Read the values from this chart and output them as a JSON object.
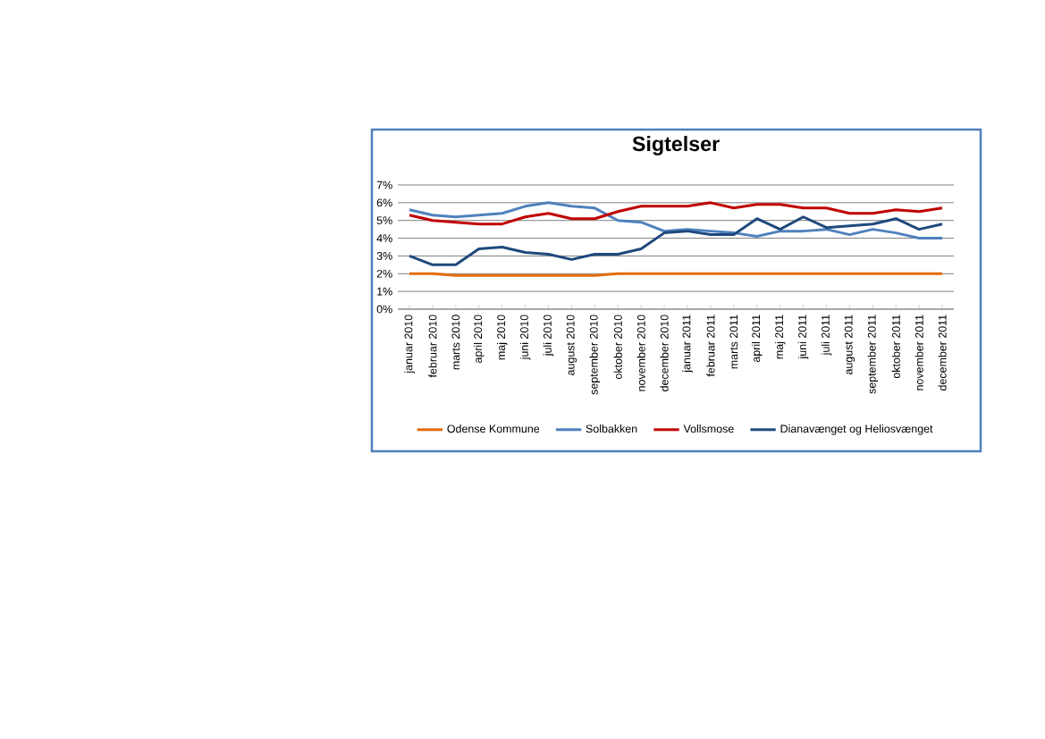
{
  "chart_data": {
    "type": "line",
    "title": "Sigtelser",
    "categories": [
      "januar 2010",
      "februar 2010",
      "marts 2010",
      "april 2010",
      "maj 2010",
      "juni 2010",
      "juli 2010",
      "august 2010",
      "september 2010",
      "oktober 2010",
      "november 2010",
      "december 2010",
      "januar 2011",
      "februar 2011",
      "marts 2011",
      "april 2011",
      "maj 2011",
      "juni 2011",
      "juli 2011",
      "august 2011",
      "september 2011",
      "oktober 2011",
      "november 2011",
      "december 2011"
    ],
    "series": [
      {
        "name": "Odense Kommune",
        "color": "#e46c0a",
        "values": [
          2.0,
          2.0,
          1.9,
          1.9,
          1.9,
          1.9,
          1.9,
          1.9,
          1.9,
          2.0,
          2.0,
          2.0,
          2.0,
          2.0,
          2.0,
          2.0,
          2.0,
          2.0,
          2.0,
          2.0,
          2.0,
          2.0,
          2.0,
          2.0
        ]
      },
      {
        "name": "Solbakken",
        "color": "#4f81bd",
        "values": [
          5.6,
          5.3,
          5.2,
          5.3,
          5.4,
          5.8,
          6.0,
          5.8,
          5.7,
          5.0,
          4.9,
          4.4,
          4.5,
          4.4,
          4.3,
          4.1,
          4.4,
          4.4,
          4.5,
          4.2,
          4.5,
          4.3,
          4.0,
          4.0
        ]
      },
      {
        "name": "Vollsmose",
        "color": "#c00000",
        "values": [
          5.3,
          5.0,
          4.9,
          4.8,
          4.8,
          5.2,
          5.4,
          5.1,
          5.1,
          5.5,
          5.8,
          5.8,
          5.8,
          6.0,
          5.7,
          5.9,
          5.9,
          5.7,
          5.7,
          5.4,
          5.4,
          5.6,
          5.5,
          5.7
        ]
      },
      {
        "name": "Dianavænget og Heliosvænget",
        "color": "#1f497d",
        "values": [
          3.0,
          2.5,
          2.5,
          3.4,
          3.5,
          3.2,
          3.1,
          2.8,
          3.1,
          3.1,
          3.4,
          4.3,
          4.4,
          4.2,
          4.2,
          5.1,
          4.5,
          5.2,
          4.6,
          4.7,
          4.8,
          5.1,
          4.5,
          4.8
        ]
      }
    ],
    "ylim": [
      0,
      7
    ],
    "yticks": [
      {
        "value": 0,
        "label": "0%"
      },
      {
        "value": 1,
        "label": "1%"
      },
      {
        "value": 2,
        "label": "2%"
      },
      {
        "value": 3,
        "label": "3%"
      },
      {
        "value": 4,
        "label": "4%"
      },
      {
        "value": 5,
        "label": "5%"
      },
      {
        "value": 6,
        "label": "6%"
      },
      {
        "value": 7,
        "label": "7%"
      }
    ],
    "grid": "y",
    "legend": "bottom",
    "marker": "none",
    "line_style": "solid"
  }
}
